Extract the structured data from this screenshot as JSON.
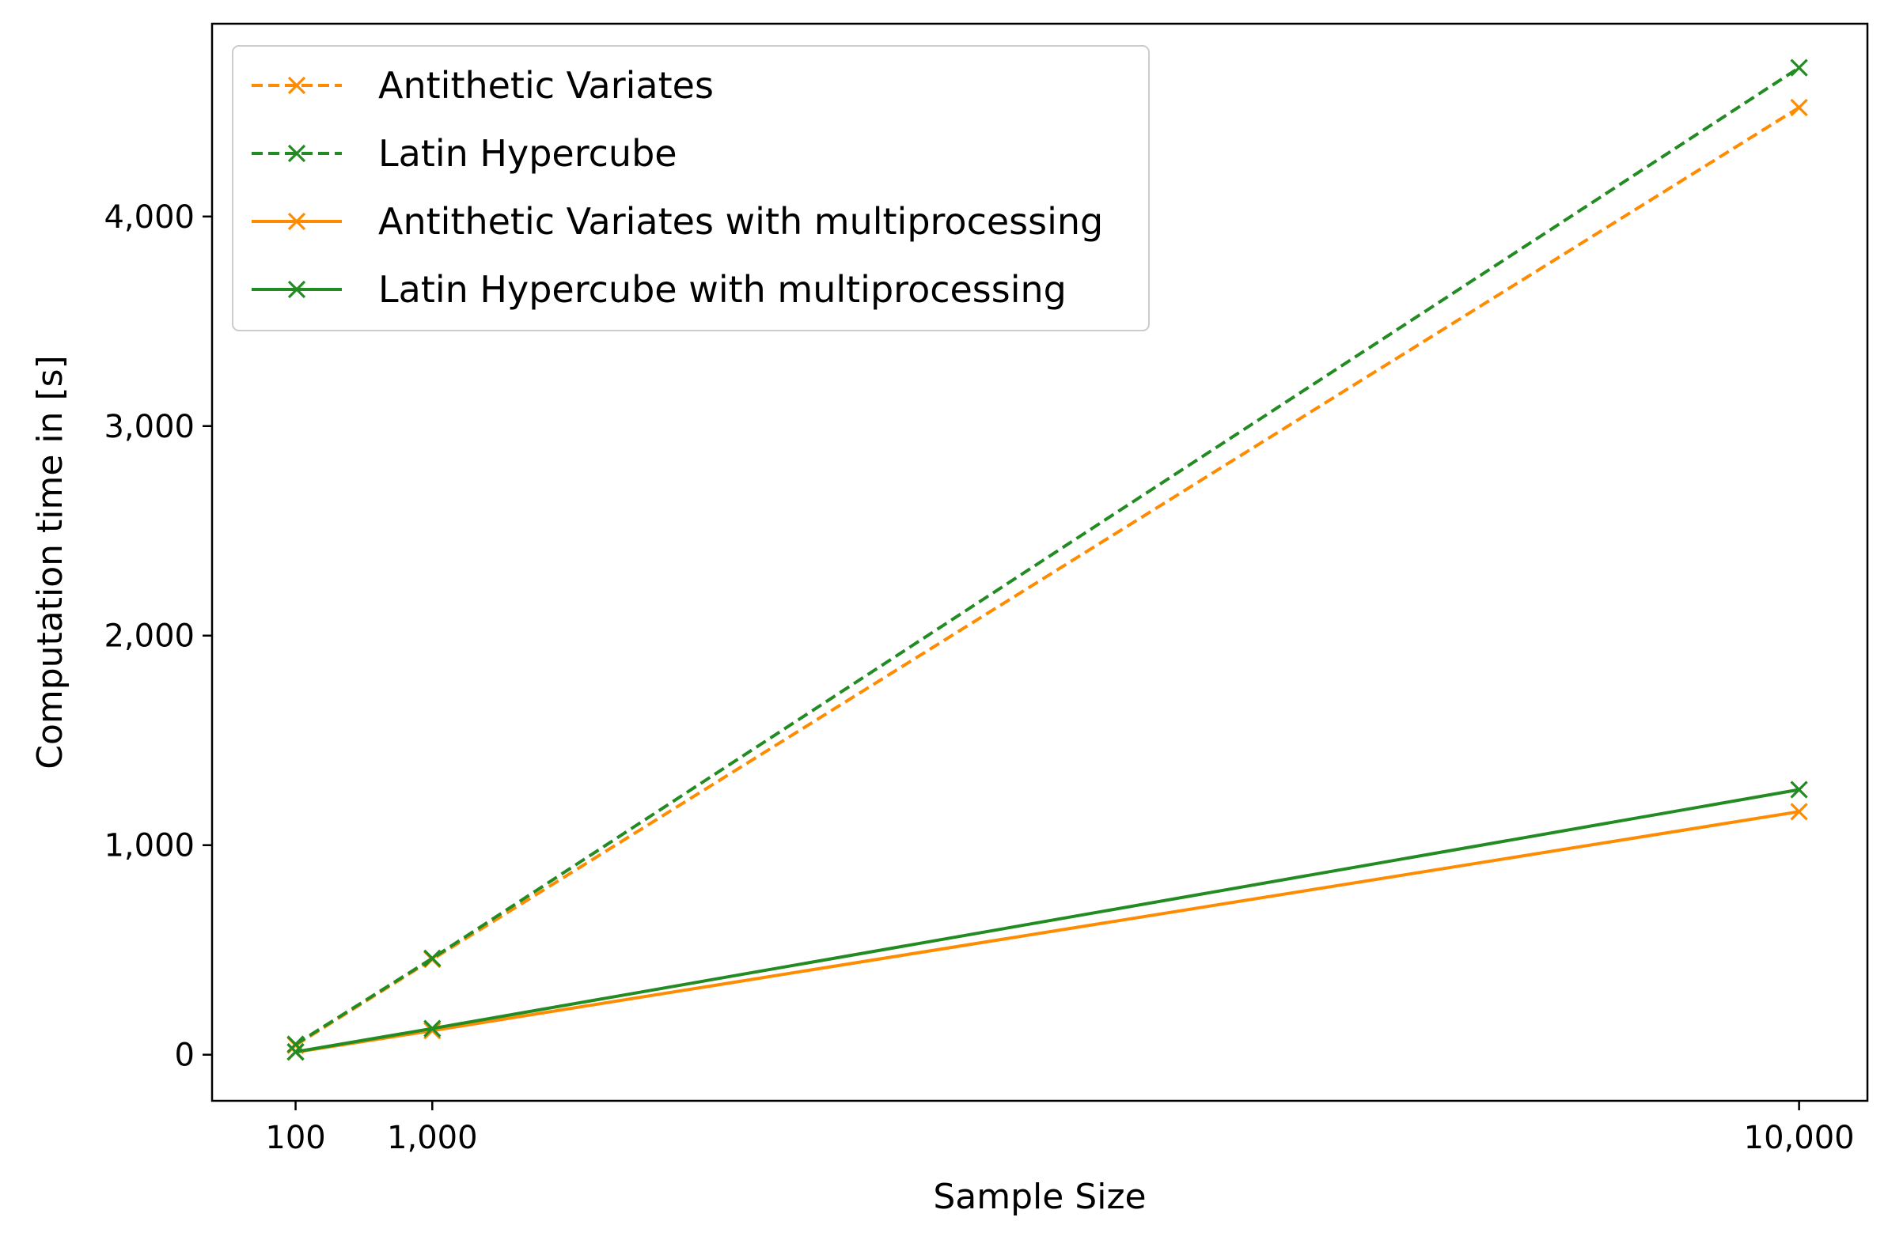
{
  "chart_data": {
    "type": "line",
    "title": "",
    "xlabel": "Sample Size",
    "ylabel": "Computation time in [s]",
    "xlim": [
      -450,
      10450
    ],
    "ylim": [
      -220,
      4920
    ],
    "x_ticks": [
      100,
      1000,
      10000
    ],
    "x_tick_labels": [
      "100",
      "1,000",
      "10,000"
    ],
    "y_ticks": [
      0,
      1000,
      2000,
      3000,
      4000
    ],
    "y_tick_labels": [
      "0",
      "1,000",
      "2,000",
      "3,000",
      "4,000"
    ],
    "grid": false,
    "legend_position": "top-left",
    "series": [
      {
        "name": "Antithetic Variates",
        "color": "#ff8c00",
        "line_style": "dashed",
        "marker": "x",
        "x": [
          100,
          1000,
          10000
        ],
        "y": [
          45,
          455,
          4520
        ]
      },
      {
        "name": "Latin Hypercube",
        "color": "#228b22",
        "line_style": "dashed",
        "marker": "x",
        "x": [
          100,
          1000,
          10000
        ],
        "y": [
          50,
          460,
          4710
        ]
      },
      {
        "name": "Antithetic Variates with multiprocessing",
        "color": "#ff8c00",
        "line_style": "solid",
        "marker": "x",
        "x": [
          100,
          1000,
          10000
        ],
        "y": [
          12,
          115,
          1160
        ]
      },
      {
        "name": "Latin Hypercube with multiprocessing",
        "color": "#228b22",
        "line_style": "solid",
        "marker": "x",
        "x": [
          100,
          1000,
          10000
        ],
        "y": [
          14,
          125,
          1265
        ]
      }
    ]
  }
}
